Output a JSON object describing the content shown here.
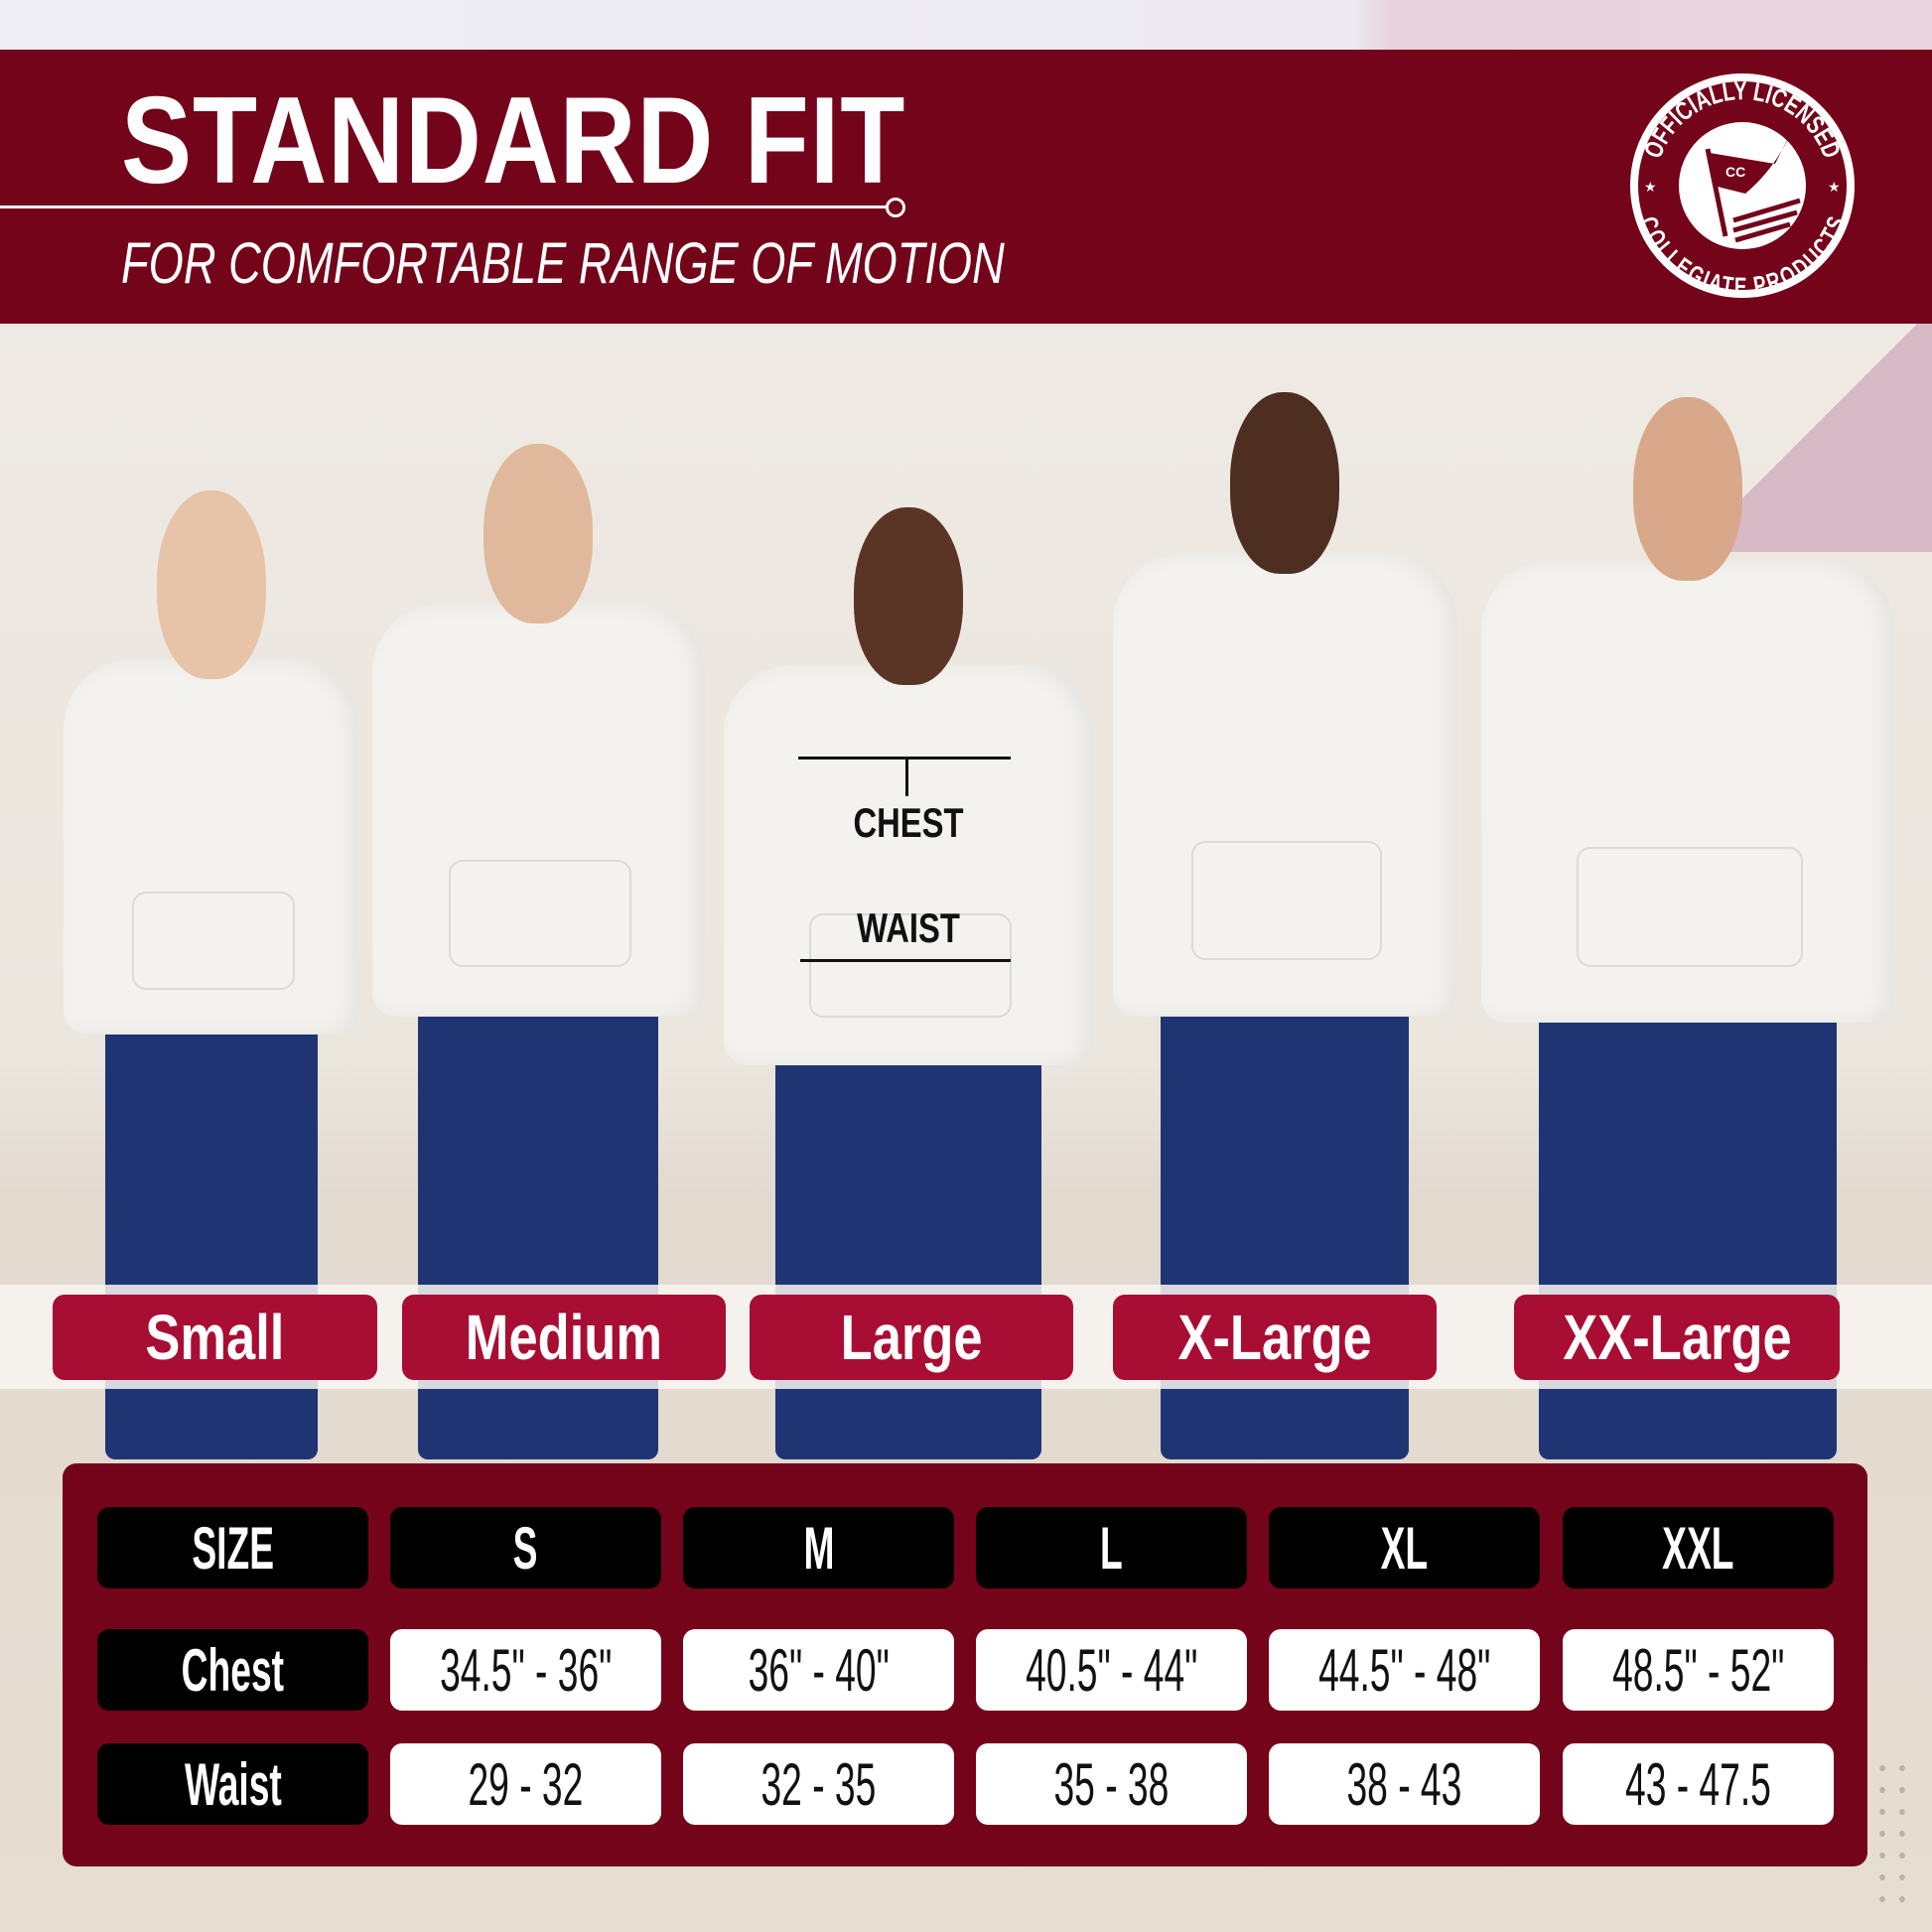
{
  "header": {
    "title": "STANDARD FIT",
    "subtitle": "FOR COMFORTABLE RANGE OF MOTION",
    "badge": {
      "top_text": "OFFICIALLY LICENSED",
      "bottom_text": "COLLEGIATE PRODUCTS",
      "flag_text": "CC"
    }
  },
  "measurements": {
    "chest": "CHEST",
    "waist": "WAIST"
  },
  "size_labels": [
    "Small",
    "Medium",
    "Large",
    "X-Large",
    "XX-Large"
  ],
  "table": {
    "header": [
      "SIZE",
      "S",
      "M",
      "L",
      "XL",
      "XXL"
    ],
    "rows": [
      {
        "label": "Chest",
        "values": [
          "34.5\" - 36\"",
          "36\" - 40\"",
          "40.5\" - 44\"",
          "44.5\" - 48\"",
          "48.5\" - 52\""
        ]
      },
      {
        "label": "Waist",
        "values": [
          "29 - 32",
          "32 - 35",
          "35 - 38",
          "38 - 43",
          "43 - 47.5"
        ]
      }
    ]
  },
  "colors": {
    "brand": "#73041a",
    "pill": "#a80d33",
    "cell_header": "#000000",
    "cell_value": "#ffffff"
  }
}
